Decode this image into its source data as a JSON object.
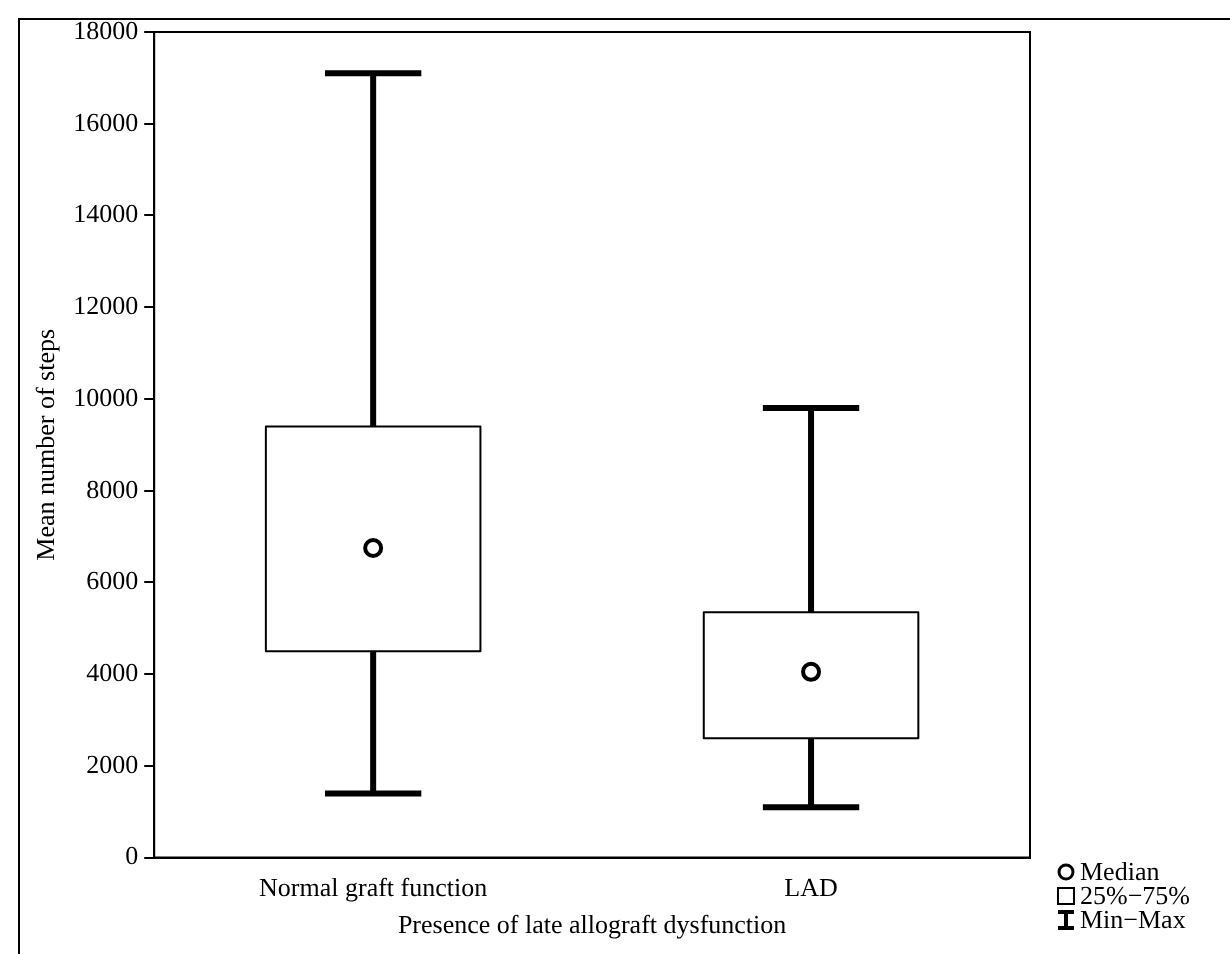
{
  "chart_data": {
    "type": "box",
    "xlabel": "Presence of late allograft dysfunction",
    "ylabel": "Mean number of steps",
    "categories": [
      "Normal graft function",
      "LAD"
    ],
    "boxes": [
      {
        "low": 1400,
        "q1": 4500,
        "median": 6750,
        "q3": 9400,
        "high": 17100
      },
      {
        "low": 1100,
        "q1": 2600,
        "median": 4050,
        "q3": 5350,
        "high": 9800
      }
    ],
    "ylim": [
      0,
      18000
    ],
    "yticks": [
      0,
      2000,
      4000,
      6000,
      8000,
      10000,
      12000,
      14000,
      16000,
      18000
    ],
    "grid": false,
    "marker": "circle",
    "annotations": [
      "Median",
      "25%−75%",
      "Min−Max"
    ]
  }
}
